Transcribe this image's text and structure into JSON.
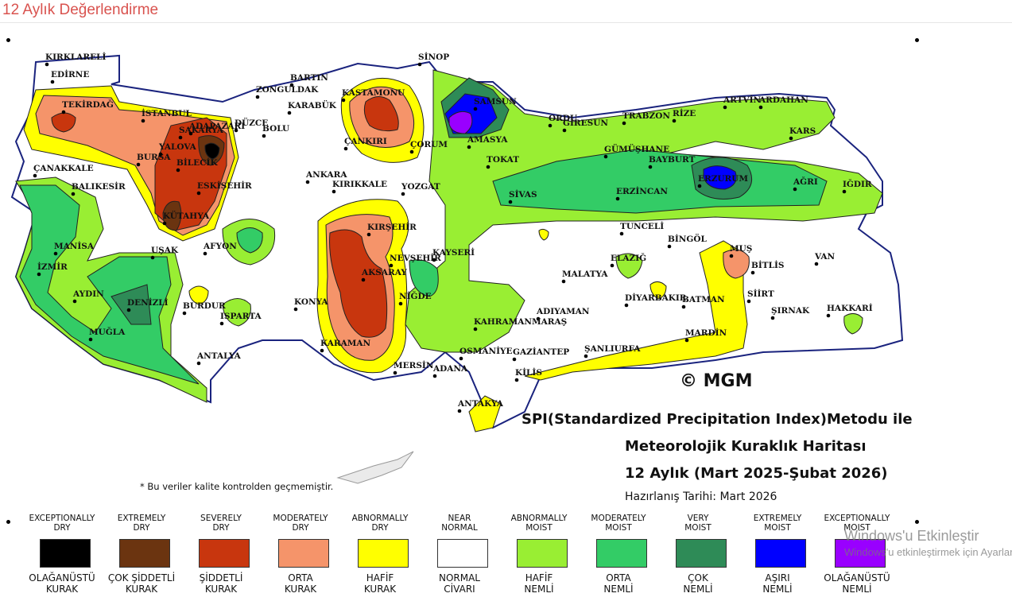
{
  "page": {
    "title": "12 Aylık Değerlendirme"
  },
  "map": {
    "credit": "© MGM",
    "title_lines": [
      "SPI(Standardized Precipitation Index)Metodu ile",
      "Meteorolojik Kuraklık Haritası",
      "12 Aylık (Mart 2025-Şubat 2026)"
    ],
    "prepared": "Hazırlanış Tarihi: Mart 2026",
    "note": "* Bu veriler kalite kontrolden geçmemiştir.",
    "cities": [
      "KIRKLARELİ",
      "EDİRNE",
      "TEKİRDAĞ",
      "İSTANBUL",
      "ÇANAKKALE",
      "BALIKESİR",
      "BURSA",
      "YALOVA",
      "SAKARYA",
      "ADAPAZARI",
      "BİLECİK",
      "DÜZCE",
      "BOLU",
      "ZONGULDAK",
      "BARTIN",
      "KARABÜK",
      "KASTAMONU",
      "SİNOP",
      "SAMSUN",
      "AMASYA",
      "ÇORUM",
      "ÇANKIRI",
      "ANKARA",
      "KIRIKKALE",
      "ESKİŞEHİR",
      "KÜTAHYA",
      "MANİSA",
      "İZMİR",
      "AYDIN",
      "MUĞLA",
      "DENİZLİ",
      "UŞAK",
      "AFYON",
      "BURDUR",
      "ISPARTA",
      "ANTALYA",
      "KONYA",
      "KARAMAN",
      "AKSARAY",
      "NEVŞEHİR",
      "KIRŞEHİR",
      "NİĞDE",
      "YOZGAT",
      "KAYSERİ",
      "SİVAS",
      "TOKAT",
      "ORDU",
      "GİRESUN",
      "TRABZON",
      "RİZE",
      "ARTVİN",
      "ARDAHAN",
      "KARS",
      "GÜMÜŞHANE",
      "BAYBURT",
      "ERZURUM",
      "AĞRI",
      "IĞDIR",
      "ERZİNCAN",
      "TUNCELİ",
      "BİNGÖL",
      "MUŞ",
      "BİTLİS",
      "VAN",
      "ELAZIĞ",
      "MALATYA",
      "DİYARBAKIR",
      "BATMAN",
      "SİİRT",
      "ŞIRNAK",
      "HAKKARİ",
      "MARDİN",
      "ŞANLIURFA",
      "ADIYAMAN",
      "KAHRAMANMARAŞ",
      "OSMANİYE",
      "GAZİANTEP",
      "KİLİS",
      "ADANA",
      "MERSİN",
      "ANTAKYA"
    ]
  },
  "legend": [
    {
      "en": "EXCEPTIONALLY\nDRY",
      "tr": "OLAĞANÜSTÜ\nKURAK",
      "color": "#000000"
    },
    {
      "en": "EXTREMELY\nDRY",
      "tr": "ÇOK ŞİDDETLİ\nKURAK",
      "color": "#6b3410"
    },
    {
      "en": "SEVERELY\nDRY",
      "tr": "ŞİDDETLİ\nKURAK",
      "color": "#c8360e"
    },
    {
      "en": "MODERATELY\nDRY",
      "tr": "ORTA\nKURAK",
      "color": "#f5946a"
    },
    {
      "en": "ABNORMALLY\nDRY",
      "tr": "HAFİF\nKURAK",
      "color": "#ffff00"
    },
    {
      "en": "NEAR\nNORMAL",
      "tr": "NORMAL\nCİVARI",
      "color": "#ffffff"
    },
    {
      "en": "ABNORMALLY\nMOIST",
      "tr": "HAFİF\nNEMLİ",
      "color": "#99ee33"
    },
    {
      "en": "MODERATELY\nMOIST",
      "tr": "ORTA\nNEMLİ",
      "color": "#33cc66"
    },
    {
      "en": "VERY\nMOIST",
      "tr": "ÇOK\nNEMLİ",
      "color": "#2e8b57"
    },
    {
      "en": "EXTREMELY\nMOIST",
      "tr": "AŞIRI\nNEMLİ",
      "color": "#0000ff"
    },
    {
      "en": "EXCEPTIONALLY\nMOIST",
      "tr": "OLAĞANÜSTÜ\nNEMLİ",
      "color": "#9900ff"
    }
  ],
  "watermark": {
    "line1": "Windows'u Etkinleştir",
    "line2": "Windows'u etkinleştirmek için Ayarlar'a gidin."
  }
}
